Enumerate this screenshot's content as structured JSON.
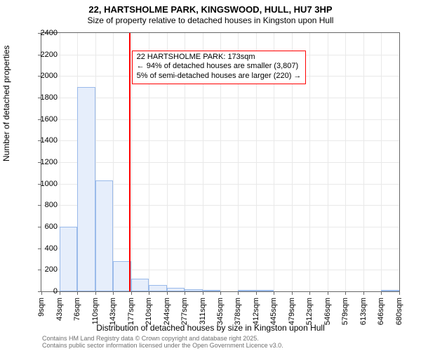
{
  "titles": {
    "main": "22, HARTSHOLME PARK, KINGSWOOD, HULL, HU7 3HP",
    "sub": "Size of property relative to detached houses in Kingston upon Hull",
    "main_fontsize": 13,
    "sub_fontsize": 12
  },
  "chart": {
    "type": "histogram",
    "background_color": "#ffffff",
    "grid_color": "#e9e9e9",
    "axis_color": "#666666",
    "bar_fill": "#e6eefb",
    "bar_stroke": "#9abaea",
    "marker_line_color": "#ff0000",
    "marker_x_value": 173,
    "xlim": [
      9,
      680
    ],
    "ylim": [
      0,
      2400
    ],
    "ytick_step": 200,
    "x_tick_values": [
      9,
      43,
      76,
      110,
      143,
      177,
      210,
      244,
      277,
      311,
      345,
      378,
      412,
      445,
      479,
      512,
      546,
      579,
      613,
      646,
      680
    ],
    "x_tick_labels": [
      "9sqm",
      "43sqm",
      "76sqm",
      "110sqm",
      "143sqm",
      "177sqm",
      "210sqm",
      "244sqm",
      "277sqm",
      "311sqm",
      "345sqm",
      "378sqm",
      "412sqm",
      "445sqm",
      "479sqm",
      "512sqm",
      "546sqm",
      "579sqm",
      "613sqm",
      "646sqm",
      "680sqm"
    ],
    "bars": [
      {
        "x0": 9,
        "x1": 43,
        "count": 0
      },
      {
        "x0": 43,
        "x1": 76,
        "count": 600
      },
      {
        "x0": 76,
        "x1": 110,
        "count": 1900
      },
      {
        "x0": 110,
        "x1": 143,
        "count": 1030
      },
      {
        "x0": 143,
        "x1": 177,
        "count": 280
      },
      {
        "x0": 177,
        "x1": 210,
        "count": 120
      },
      {
        "x0": 210,
        "x1": 244,
        "count": 60
      },
      {
        "x0": 244,
        "x1": 277,
        "count": 30
      },
      {
        "x0": 277,
        "x1": 311,
        "count": 20
      },
      {
        "x0": 311,
        "x1": 345,
        "count": 10
      },
      {
        "x0": 345,
        "x1": 378,
        "count": 0
      },
      {
        "x0": 378,
        "x1": 412,
        "count": 5
      },
      {
        "x0": 412,
        "x1": 445,
        "count": 5
      },
      {
        "x0": 445,
        "x1": 479,
        "count": 0
      },
      {
        "x0": 479,
        "x1": 512,
        "count": 0
      },
      {
        "x0": 512,
        "x1": 546,
        "count": 0
      },
      {
        "x0": 546,
        "x1": 579,
        "count": 0
      },
      {
        "x0": 579,
        "x1": 613,
        "count": 0
      },
      {
        "x0": 613,
        "x1": 646,
        "count": 0
      },
      {
        "x0": 646,
        "x1": 680,
        "count": 5
      }
    ],
    "annotation": {
      "line1": "22 HARTSHOLME PARK: 173sqm",
      "line2": "← 94% of detached houses are smaller (3,807)",
      "line3": "5% of semi-detached houses are larger (220) →",
      "border_color": "#ff0000",
      "fontsize": 11,
      "pos_y_value": 2200
    },
    "ylabel": "Number of detached properties",
    "xlabel": "Distribution of detached houses by size in Kingston upon Hull",
    "label_fontsize": 12,
    "tick_fontsize": 11
  },
  "footer": {
    "line1": "Contains HM Land Registry data © Crown copyright and database right 2025.",
    "line2": "Contains public sector information licensed under the Open Government Licence v3.0.",
    "color": "#707070",
    "fontsize": 9
  }
}
